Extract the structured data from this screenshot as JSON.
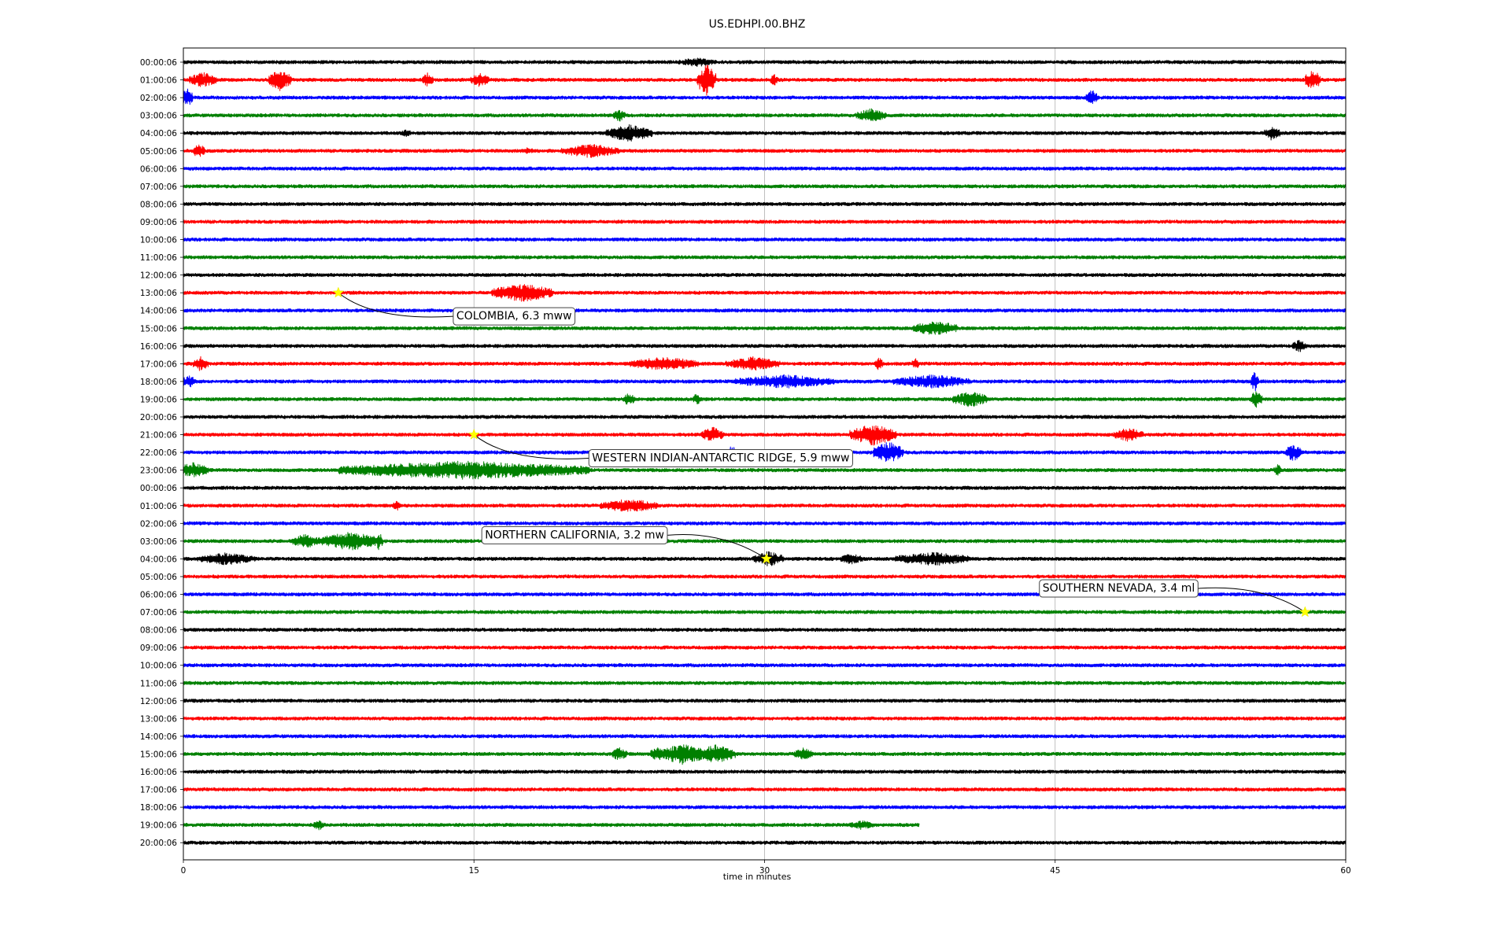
{
  "chart_data": {
    "type": "line",
    "title": "US.EDHPI.00.BHZ",
    "xlabel": "time in minutes",
    "ylabel": "",
    "xlim": [
      0,
      60
    ],
    "x_ticks": [
      0,
      15,
      30,
      45,
      60
    ],
    "grid": "vertical lines at major x ticks",
    "trace_colors": [
      "#000000",
      "#ff0000",
      "#0000ff",
      "#008000"
    ],
    "row_labels": [
      "00:00:06",
      "01:00:06",
      "02:00:06",
      "03:00:06",
      "04:00:06",
      "05:00:06",
      "06:00:06",
      "07:00:06",
      "08:00:06",
      "09:00:06",
      "10:00:06",
      "11:00:06",
      "12:00:06",
      "13:00:06",
      "14:00:06",
      "15:00:06",
      "16:00:06",
      "17:00:06",
      "18:00:06",
      "19:00:06",
      "20:00:06",
      "21:00:06",
      "22:00:06",
      "23:00:06",
      "00:00:06",
      "01:00:06",
      "02:00:06",
      "03:00:06",
      "04:00:06",
      "05:00:06",
      "06:00:06",
      "07:00:06",
      "08:00:06",
      "09:00:06",
      "10:00:06",
      "11:00:06",
      "12:00:06",
      "13:00:06",
      "14:00:06",
      "15:00:06",
      "16:00:06",
      "17:00:06",
      "18:00:06",
      "19:00:06",
      "20:00:06"
    ],
    "traces_end_minute": {
      "row": 43,
      "minute": 38
    },
    "events": [
      {
        "label": "COLOMBIA, 6.3 mww",
        "row": 13,
        "minute": 8.0,
        "marker": "star",
        "marker_color": "#ffff00"
      },
      {
        "label": "WESTERN INDIAN-ANTARCTIC RIDGE, 5.9 mww",
        "row": 21,
        "minute": 15.0,
        "marker": "star",
        "marker_color": "#ffff00"
      },
      {
        "label": "NORTHERN CALIFORNIA, 3.2 mw",
        "row": 28,
        "minute": 30.1,
        "marker": "star",
        "marker_color": "#ffff00"
      },
      {
        "label": "SOUTHERN NEVADA, 3.4 ml",
        "row": 31,
        "minute": 57.9,
        "marker": "star",
        "marker_color": "#ffff00"
      }
    ],
    "bursts": [
      [
        0,
        26.5,
        1.0,
        6
      ],
      [
        1,
        1.0,
        0.7,
        10
      ],
      [
        1,
        5.0,
        0.6,
        14
      ],
      [
        1,
        12.6,
        0.3,
        9
      ],
      [
        1,
        15.3,
        0.5,
        9
      ],
      [
        1,
        27.0,
        0.5,
        20
      ],
      [
        1,
        30.5,
        0.2,
        8
      ],
      [
        1,
        58.3,
        0.4,
        14
      ],
      [
        2,
        0.2,
        0.3,
        12
      ],
      [
        2,
        46.9,
        0.3,
        10
      ],
      [
        3,
        22.5,
        0.3,
        9
      ],
      [
        3,
        35.5,
        0.8,
        9
      ],
      [
        4,
        11.5,
        0.3,
        5
      ],
      [
        4,
        23.0,
        1.2,
        11
      ],
      [
        4,
        56.2,
        0.4,
        10
      ],
      [
        5,
        0.8,
        0.3,
        10
      ],
      [
        5,
        21.0,
        1.5,
        9
      ],
      [
        5,
        17.8,
        0.3,
        5
      ],
      [
        13,
        17.5,
        1.6,
        12
      ],
      [
        15,
        38.8,
        1.2,
        10
      ],
      [
        16,
        57.6,
        0.4,
        8
      ],
      [
        17,
        0.9,
        0.4,
        10
      ],
      [
        17,
        24.8,
        1.8,
        9
      ],
      [
        17,
        29.4,
        1.4,
        9
      ],
      [
        17,
        35.9,
        0.2,
        9
      ],
      [
        17,
        37.8,
        0.2,
        8
      ],
      [
        18,
        0.3,
        0.4,
        8
      ],
      [
        18,
        31.0,
        2.6,
        9
      ],
      [
        18,
        38.6,
        2.0,
        9
      ],
      [
        18,
        55.3,
        0.2,
        14
      ],
      [
        19,
        23.0,
        0.3,
        9
      ],
      [
        19,
        26.5,
        0.2,
        8
      ],
      [
        19,
        40.6,
        0.9,
        11
      ],
      [
        19,
        55.4,
        0.3,
        12
      ],
      [
        21,
        27.3,
        0.6,
        10
      ],
      [
        21,
        35.6,
        1.2,
        14
      ],
      [
        21,
        48.8,
        0.8,
        9
      ],
      [
        22,
        28.3,
        0.2,
        10
      ],
      [
        22,
        36.4,
        0.8,
        14
      ],
      [
        22,
        57.3,
        0.4,
        12
      ],
      [
        23,
        0.5,
        0.8,
        10
      ],
      [
        23,
        10.1,
        0.3,
        10
      ],
      [
        23,
        14.5,
        6.5,
        12
      ],
      [
        23,
        56.5,
        0.2,
        8
      ],
      [
        25,
        11.0,
        0.2,
        7
      ],
      [
        25,
        23.0,
        1.5,
        9
      ],
      [
        27,
        6.3,
        0.7,
        10
      ],
      [
        27,
        8.6,
        1.6,
        12
      ],
      [
        27,
        10.1,
        0.2,
        12
      ],
      [
        28,
        2.2,
        1.5,
        8
      ],
      [
        28,
        30.2,
        0.8,
        10
      ],
      [
        28,
        34.5,
        0.6,
        7
      ],
      [
        28,
        38.7,
        2.0,
        9
      ],
      [
        39,
        22.5,
        0.4,
        9
      ],
      [
        39,
        24.5,
        0.4,
        10
      ],
      [
        39,
        25.8,
        1.2,
        14
      ],
      [
        39,
        27.5,
        1.0,
        12
      ],
      [
        39,
        32.0,
        0.5,
        8
      ],
      [
        43,
        7.0,
        0.3,
        7
      ],
      [
        43,
        35.0,
        0.7,
        6
      ]
    ]
  }
}
